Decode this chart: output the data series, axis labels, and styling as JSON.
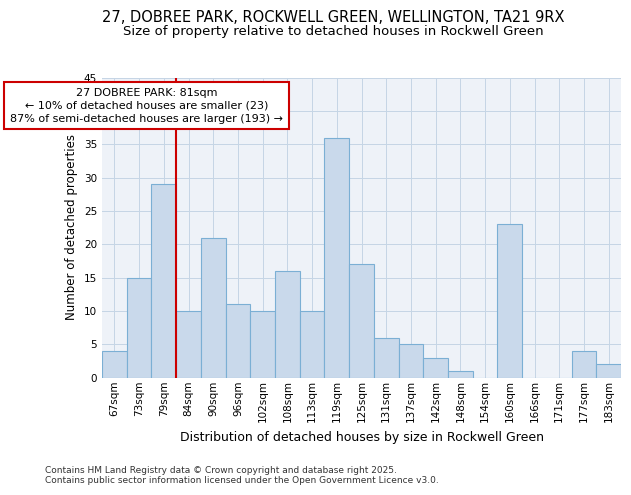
{
  "title_line1": "27, DOBREE PARK, ROCKWELL GREEN, WELLINGTON, TA21 9RX",
  "title_line2": "Size of property relative to detached houses in Rockwell Green",
  "categories": [
    "67sqm",
    "73sqm",
    "79sqm",
    "84sqm",
    "90sqm",
    "96sqm",
    "102sqm",
    "108sqm",
    "113sqm",
    "119sqm",
    "125sqm",
    "131sqm",
    "137sqm",
    "142sqm",
    "148sqm",
    "154sqm",
    "160sqm",
    "166sqm",
    "171sqm",
    "177sqm",
    "183sqm"
  ],
  "values": [
    4,
    15,
    29,
    10,
    21,
    11,
    10,
    16,
    10,
    36,
    17,
    6,
    5,
    3,
    1,
    0,
    23,
    0,
    0,
    4,
    2
  ],
  "bar_color": "#c9d9eb",
  "bar_edge_color": "#7bafd4",
  "xlabel": "Distribution of detached houses by size in Rockwell Green",
  "ylabel": "Number of detached properties",
  "ylim": [
    0,
    45
  ],
  "yticks": [
    0,
    5,
    10,
    15,
    20,
    25,
    30,
    35,
    40,
    45
  ],
  "annotation_text": "27 DOBREE PARK: 81sqm\n← 10% of detached houses are smaller (23)\n87% of semi-detached houses are larger (193) →",
  "annotation_box_color": "#ffffff",
  "annotation_box_edge": "#cc0000",
  "vline_color": "#cc0000",
  "vline_x_idx": 2.5,
  "grid_color": "#c5d5e5",
  "background_color": "#eef2f8",
  "footnote": "Contains HM Land Registry data © Crown copyright and database right 2025.\nContains public sector information licensed under the Open Government Licence v3.0.",
  "title_fontsize": 10.5,
  "subtitle_fontsize": 9.5,
  "tick_fontsize": 7.5,
  "ylabel_fontsize": 8.5,
  "xlabel_fontsize": 9,
  "annot_fontsize": 8,
  "footnote_fontsize": 6.5
}
